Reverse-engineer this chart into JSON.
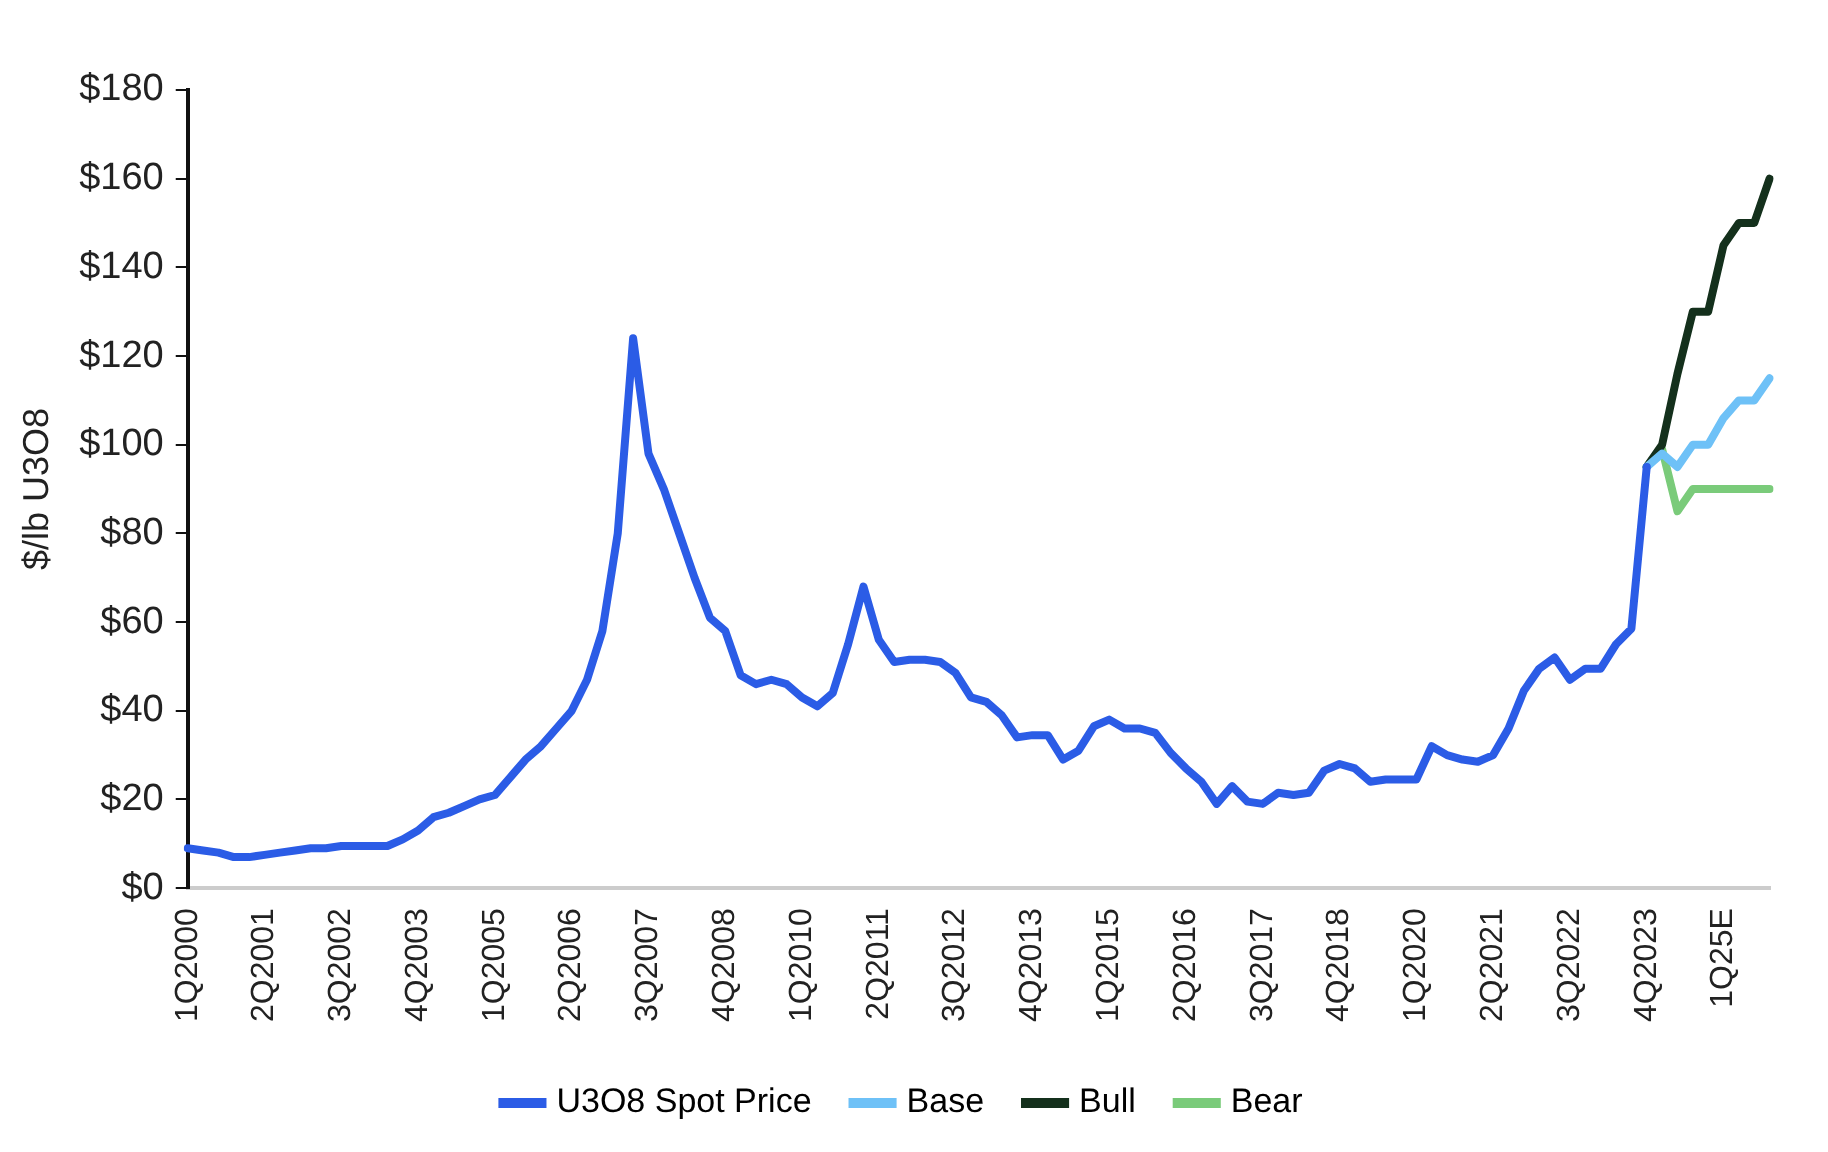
{
  "chart_data": {
    "type": "line",
    "ylabel": "$/lb U3O8",
    "categories": [
      "1Q2000",
      null,
      null,
      null,
      null,
      "2Q2001",
      null,
      null,
      null,
      null,
      "3Q2002",
      null,
      null,
      null,
      null,
      "4Q2003",
      null,
      null,
      null,
      null,
      "1Q2005",
      null,
      null,
      null,
      null,
      "2Q2006",
      null,
      null,
      null,
      null,
      "3Q2007",
      null,
      null,
      null,
      null,
      "4Q2008",
      null,
      null,
      null,
      null,
      "1Q2010",
      null,
      null,
      null,
      null,
      "2Q2011",
      null,
      null,
      null,
      null,
      "3Q2012",
      null,
      null,
      null,
      null,
      "4Q2013",
      null,
      null,
      null,
      null,
      "1Q2015",
      null,
      null,
      null,
      null,
      "2Q2016",
      null,
      null,
      null,
      null,
      "3Q2017",
      null,
      null,
      null,
      null,
      "4Q2018",
      null,
      null,
      null,
      null,
      "1Q2020",
      null,
      null,
      null,
      null,
      "2Q2021",
      null,
      null,
      null,
      null,
      "3Q2022",
      null,
      null,
      null,
      null,
      "4Q2023",
      null,
      null,
      null,
      null,
      "1Q25E",
      null,
      null,
      null
    ],
    "series": [
      {
        "name": "U3O8 Spot Price",
        "color": "#2b5ce6",
        "values": [
          9,
          8.5,
          8,
          7,
          7,
          7.5,
          8,
          8.5,
          9,
          9,
          9.5,
          9.5,
          9.5,
          9.5,
          11,
          13,
          16,
          17,
          18.5,
          20,
          21,
          25,
          29,
          32,
          36,
          40,
          47,
          58,
          80,
          124,
          98,
          90,
          80,
          70,
          61,
          58,
          48,
          46,
          47,
          46,
          43,
          41,
          44,
          55,
          68,
          56,
          51,
          51.5,
          51.5,
          51,
          48.5,
          43,
          42,
          39,
          34,
          34.5,
          34.5,
          29,
          31,
          36.5,
          38,
          36,
          36,
          35,
          30.5,
          27,
          24,
          19,
          23,
          19.5,
          19,
          21.5,
          21,
          21.5,
          26.5,
          28,
          27,
          24,
          24.5,
          24.5,
          24.5,
          32,
          30,
          29,
          28.5,
          30,
          36,
          44.5,
          49.5,
          52,
          47,
          49.5,
          49.5,
          55,
          58.5,
          95,
          null,
          null,
          null,
          null,
          null,
          null,
          null,
          null
        ]
      },
      {
        "name": "Base",
        "color": "#6ec1f7",
        "values": [
          null,
          null,
          null,
          null,
          null,
          null,
          null,
          null,
          null,
          null,
          null,
          null,
          null,
          null,
          null,
          null,
          null,
          null,
          null,
          null,
          null,
          null,
          null,
          null,
          null,
          null,
          null,
          null,
          null,
          null,
          null,
          null,
          null,
          null,
          null,
          null,
          null,
          null,
          null,
          null,
          null,
          null,
          null,
          null,
          null,
          null,
          null,
          null,
          null,
          null,
          null,
          null,
          null,
          null,
          null,
          null,
          null,
          null,
          null,
          null,
          null,
          null,
          null,
          null,
          null,
          null,
          null,
          null,
          null,
          null,
          null,
          null,
          null,
          null,
          null,
          null,
          null,
          null,
          null,
          null,
          null,
          null,
          null,
          null,
          null,
          null,
          null,
          null,
          null,
          null,
          null,
          null,
          null,
          null,
          null,
          95,
          98,
          95,
          100,
          100,
          106,
          110,
          110,
          115
        ]
      },
      {
        "name": "Bull",
        "color": "#14301c",
        "values": [
          null,
          null,
          null,
          null,
          null,
          null,
          null,
          null,
          null,
          null,
          null,
          null,
          null,
          null,
          null,
          null,
          null,
          null,
          null,
          null,
          null,
          null,
          null,
          null,
          null,
          null,
          null,
          null,
          null,
          null,
          null,
          null,
          null,
          null,
          null,
          null,
          null,
          null,
          null,
          null,
          null,
          null,
          null,
          null,
          null,
          null,
          null,
          null,
          null,
          null,
          null,
          null,
          null,
          null,
          null,
          null,
          null,
          null,
          null,
          null,
          null,
          null,
          null,
          null,
          null,
          null,
          null,
          null,
          null,
          null,
          null,
          null,
          null,
          null,
          null,
          null,
          null,
          null,
          null,
          null,
          null,
          null,
          null,
          null,
          null,
          null,
          null,
          null,
          null,
          null,
          null,
          null,
          null,
          null,
          null,
          95,
          100,
          116,
          130,
          130,
          145,
          150,
          150,
          160
        ]
      },
      {
        "name": "Bear",
        "color": "#7acb7a",
        "values": [
          null,
          null,
          null,
          null,
          null,
          null,
          null,
          null,
          null,
          null,
          null,
          null,
          null,
          null,
          null,
          null,
          null,
          null,
          null,
          null,
          null,
          null,
          null,
          null,
          null,
          null,
          null,
          null,
          null,
          null,
          null,
          null,
          null,
          null,
          null,
          null,
          null,
          null,
          null,
          null,
          null,
          null,
          null,
          null,
          null,
          null,
          null,
          null,
          null,
          null,
          null,
          null,
          null,
          null,
          null,
          null,
          null,
          null,
          null,
          null,
          null,
          null,
          null,
          null,
          null,
          null,
          null,
          null,
          null,
          null,
          null,
          null,
          null,
          null,
          null,
          null,
          null,
          null,
          null,
          null,
          null,
          null,
          null,
          null,
          null,
          null,
          null,
          null,
          null,
          null,
          null,
          null,
          null,
          null,
          null,
          95,
          99,
          85,
          90,
          90,
          90,
          90,
          90,
          90
        ]
      }
    ],
    "ylim": [
      0,
      180
    ],
    "yticks": [
      {
        "value": 0,
        "label": "$0"
      },
      {
        "value": 20,
        "label": "$20"
      },
      {
        "value": 40,
        "label": "$40"
      },
      {
        "value": 60,
        "label": "$60"
      },
      {
        "value": 80,
        "label": "$80"
      },
      {
        "value": 100,
        "label": "$100"
      },
      {
        "value": 120,
        "label": "$120"
      },
      {
        "value": 140,
        "label": "$140"
      },
      {
        "value": 160,
        "label": "$160"
      },
      {
        "value": 180,
        "label": "$180"
      }
    ],
    "grid": false,
    "legend": "bottom",
    "marker": "none",
    "line_style": "solid"
  }
}
